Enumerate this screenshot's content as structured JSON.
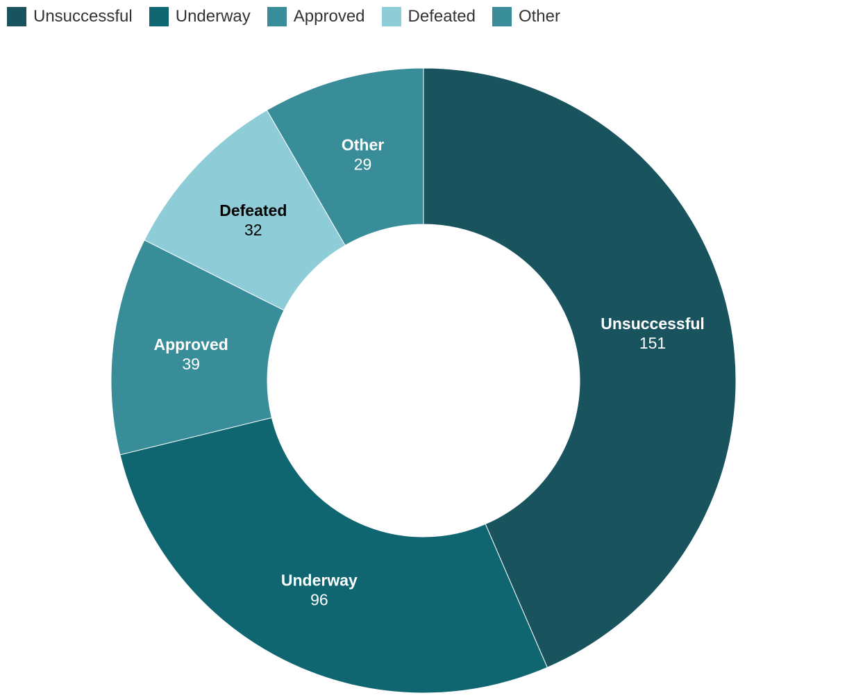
{
  "chart_data": {
    "type": "pie",
    "donut": true,
    "legend_position": "top-left",
    "slices": [
      {
        "label": "Unsuccessful",
        "value": 151,
        "color": "#18535e",
        "text_color": "#ffffff"
      },
      {
        "label": "Underway",
        "value": 96,
        "color": "#0f6670",
        "text_color": "#ffffff"
      },
      {
        "label": "Approved",
        "value": 39,
        "color": "#388d99",
        "text_color": "#ffffff"
      },
      {
        "label": "Defeated",
        "value": 32,
        "color": "#8ecdd7",
        "text_color": "#000000"
      },
      {
        "label": "Other",
        "value": 29,
        "color": "#388d99",
        "text_color": "#ffffff"
      }
    ]
  }
}
